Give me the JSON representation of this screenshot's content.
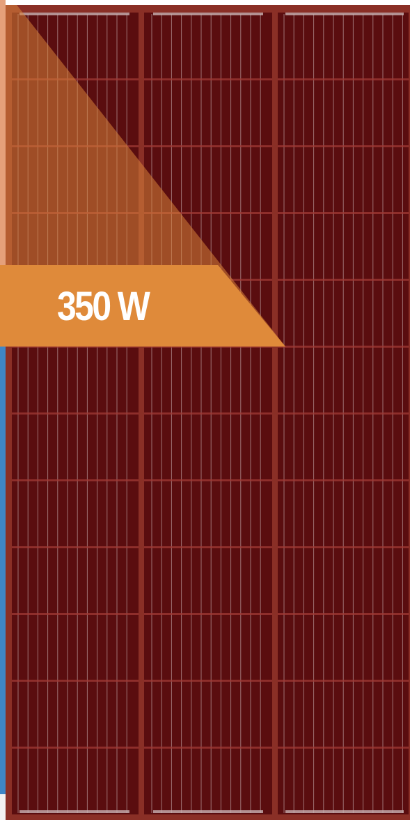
{
  "panel": {
    "power_label": "350 W",
    "frame_color": "#8a2f26",
    "cell_color": "#5a0d0f",
    "grid_line_color": "#a03a36",
    "finger_color": "#d9c8c8",
    "banner_color": "#df8a3a",
    "overlay_color": "#d8843a"
  }
}
